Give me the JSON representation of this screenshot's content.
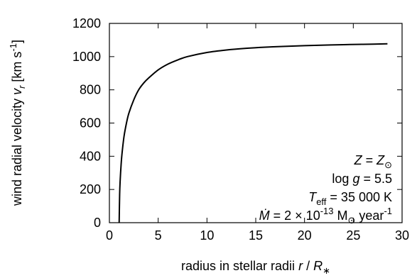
{
  "chart_data": {
    "type": "line",
    "xlabel": "radius in stellar radii",
    "xlabel_math": "r / R*",
    "ylabel": "wind radial velocity",
    "ylabel_math": "vr [km s-1]",
    "xlim": [
      0,
      30
    ],
    "ylim": [
      0,
      1200
    ],
    "x_ticks": [
      0,
      5,
      10,
      15,
      20,
      25,
      30
    ],
    "y_ticks": [
      0,
      200,
      400,
      600,
      800,
      1000,
      1200
    ],
    "x_tick_labels": [
      "0",
      "5",
      "10",
      "15",
      "20",
      "25",
      "30"
    ],
    "y_tick_labels": [
      "0",
      "200",
      "400",
      "600",
      "800",
      "1000",
      "1200"
    ],
    "grid": false,
    "series": [
      {
        "color": "#000000",
        "x": [
          1.0,
          1.05,
          1.1,
          1.2,
          1.3,
          1.5,
          1.75,
          2.0,
          2.5,
          3.0,
          3.5,
          4.0,
          5.0,
          6.0,
          7.0,
          8.0,
          10.0,
          12.0,
          14.0,
          16.0,
          18.0,
          20.0,
          22.0,
          24.0,
          26.0,
          28.5
        ],
        "y": [
          0,
          170,
          250,
          350,
          420,
          520,
          600,
          660,
          740,
          800,
          840,
          870,
          920,
          955,
          980,
          1000,
          1025,
          1040,
          1050,
          1057,
          1062,
          1066,
          1069,
          1072,
          1074,
          1077
        ]
      }
    ],
    "annotations": {
      "line1": "Z = Z⊙",
      "line2_prefix": "log ",
      "line2_var": "g",
      "line2_suffix": " = 5.5",
      "line3_var": "T",
      "line3_sub": "eff",
      "line3_suffix": " = 35 000 K",
      "line4_var": "Ṁ",
      "line4_mid": " = 2 × 10",
      "line4_exp": "-13",
      "line4_unit": " M",
      "line4_unit_sub": "⊙",
      "line4_tail": " year",
      "line4_tail_exp": "-1"
    }
  }
}
